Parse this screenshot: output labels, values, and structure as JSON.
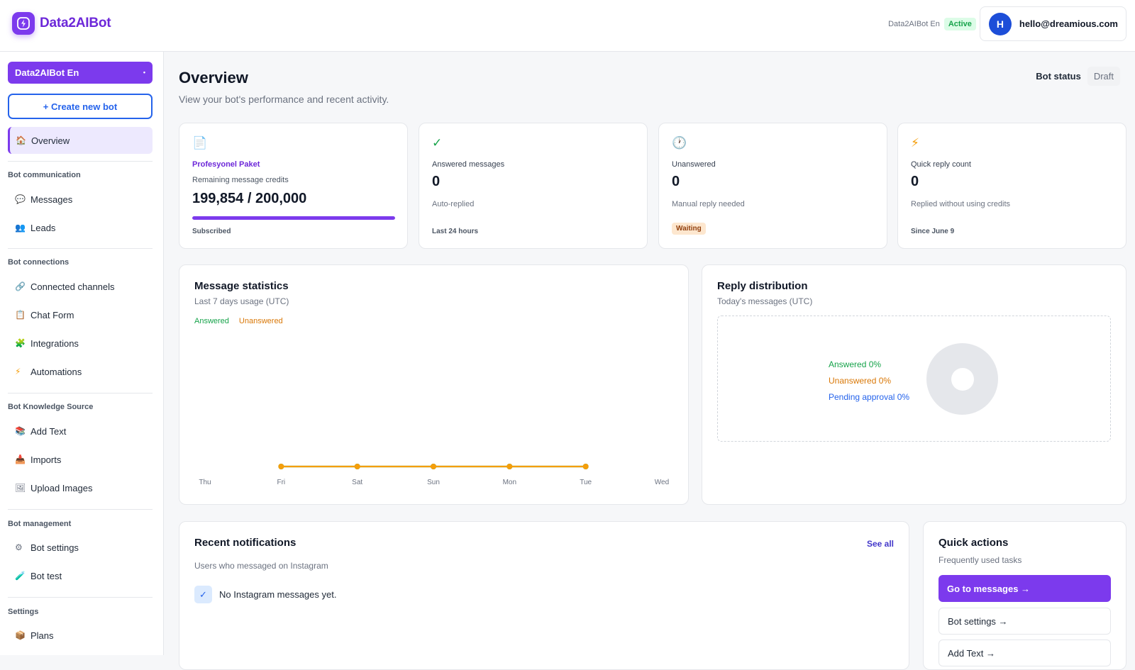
{
  "brand": {
    "name": "Data2AIBot"
  },
  "topbar": {
    "bot_name": "Data2AIBot En",
    "status": "Active",
    "avatar_initial": "H",
    "email": "hello@dreamious.com"
  },
  "sidebar": {
    "bot_select": "Data2AIBot En",
    "create_button": "+ Create new bot",
    "overview": "Overview",
    "sections": [
      {
        "title": "Bot communication",
        "items": [
          "Messages",
          "Leads"
        ]
      },
      {
        "title": "Bot connections",
        "items": [
          "Connected channels",
          "Chat Form",
          "Integrations",
          "Automations"
        ]
      },
      {
        "title": "Bot Knowledge Source",
        "items": [
          "Add Text",
          "Imports",
          "Upload Images"
        ]
      },
      {
        "title": "Bot management",
        "items": [
          "Bot settings",
          "Bot test"
        ]
      },
      {
        "title": "Settings",
        "items": [
          "Plans"
        ]
      }
    ],
    "icons": {
      "overview": "house-icon",
      "messages": "speech-bubble-icon",
      "leads": "users-icon",
      "channels": "link-icon",
      "chat_form": "form-icon",
      "integrations": "puzzle-icon",
      "automations": "lightning-icon",
      "add_text": "books-icon",
      "imports": "inbox-tray-icon",
      "upload_images": "image-icon",
      "bot_settings": "gear-icon",
      "bot_test": "test-tube-icon",
      "plans": "package-icon"
    }
  },
  "header": {
    "title": "Overview",
    "subtitle": "View your bot's performance and recent activity.",
    "bot_status_label": "Bot status",
    "bot_status_value": "Draft"
  },
  "stats": {
    "credits": {
      "plan": "Profesyonel Paket",
      "label": "Remaining message credits",
      "value": "199,854 / 200,000",
      "progress_fraction": 0.99927,
      "footer": "Subscribed"
    },
    "answered": {
      "label": "Answered messages",
      "value": "0",
      "sub": "Auto-replied",
      "footer": "Last 24 hours"
    },
    "unanswered": {
      "label": "Unanswered",
      "value": "0",
      "sub": "Manual reply needed",
      "badge": "Waiting"
    },
    "quick_reply": {
      "label": "Quick reply count",
      "value": "0",
      "sub": "Replied without using credits",
      "footer": "Since June 9"
    }
  },
  "message_stats": {
    "title": "Message statistics",
    "subtitle": "Last 7 days usage (UTC)",
    "legend_answered": "Answered",
    "legend_unanswered": "Unanswered"
  },
  "chart_data": {
    "type": "line",
    "categories": [
      "Thu",
      "Fri",
      "Sat",
      "Sun",
      "Mon",
      "Tue",
      "Wed"
    ],
    "series": [
      {
        "name": "Answered",
        "values": [
          0,
          0,
          0,
          0,
          0,
          0,
          0
        ],
        "color": "#16a34a"
      },
      {
        "name": "Unanswered",
        "values": [
          0,
          0,
          0,
          0,
          0,
          0,
          0
        ],
        "color": "#f59e0b"
      }
    ],
    "grid": false,
    "legend": "top-left"
  },
  "reply_distribution": {
    "title": "Reply distribution",
    "subtitle": "Today's messages (UTC)",
    "answered": "Answered 0%",
    "unanswered": "Unanswered 0%",
    "pending": "Pending approval 0%"
  },
  "notifications": {
    "title": "Recent notifications",
    "see_all": "See all",
    "subtitle": "Users who messaged on Instagram",
    "empty": "No Instagram messages yet."
  },
  "quick_actions": {
    "title": "Quick actions",
    "subtitle": "Frequently used tasks",
    "buttons": [
      "Go to messages →",
      "Bot settings →",
      "Add Text →"
    ]
  },
  "colors": {
    "accent": "#7c3aed",
    "answered": "#16a34a",
    "unanswered": "#f59e0b",
    "pending": "#2563eb"
  }
}
